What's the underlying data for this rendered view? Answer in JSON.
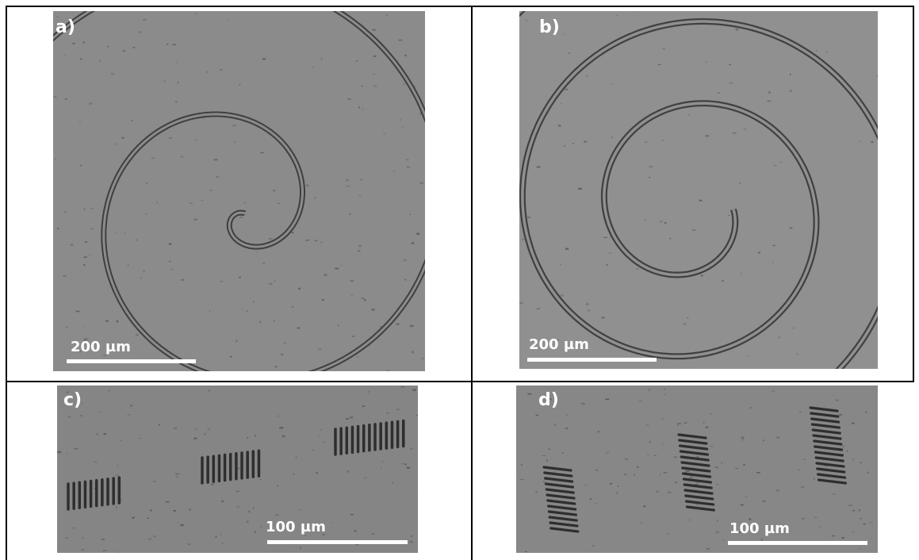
{
  "figure": {
    "panels": [
      {
        "id": "a",
        "label": "a)",
        "scale_label": "200 µm"
      },
      {
        "id": "b",
        "label": "b)",
        "scale_label": "200 µm"
      },
      {
        "id": "c",
        "label": "c)",
        "scale_label": "100 µm"
      },
      {
        "id": "d",
        "label": "d)",
        "scale_label": "100 µm"
      }
    ]
  },
  "colors": {
    "background": "#8a8a8a",
    "line": "#3e3e3e",
    "text": "#ffffff",
    "table_border": "#000000"
  }
}
